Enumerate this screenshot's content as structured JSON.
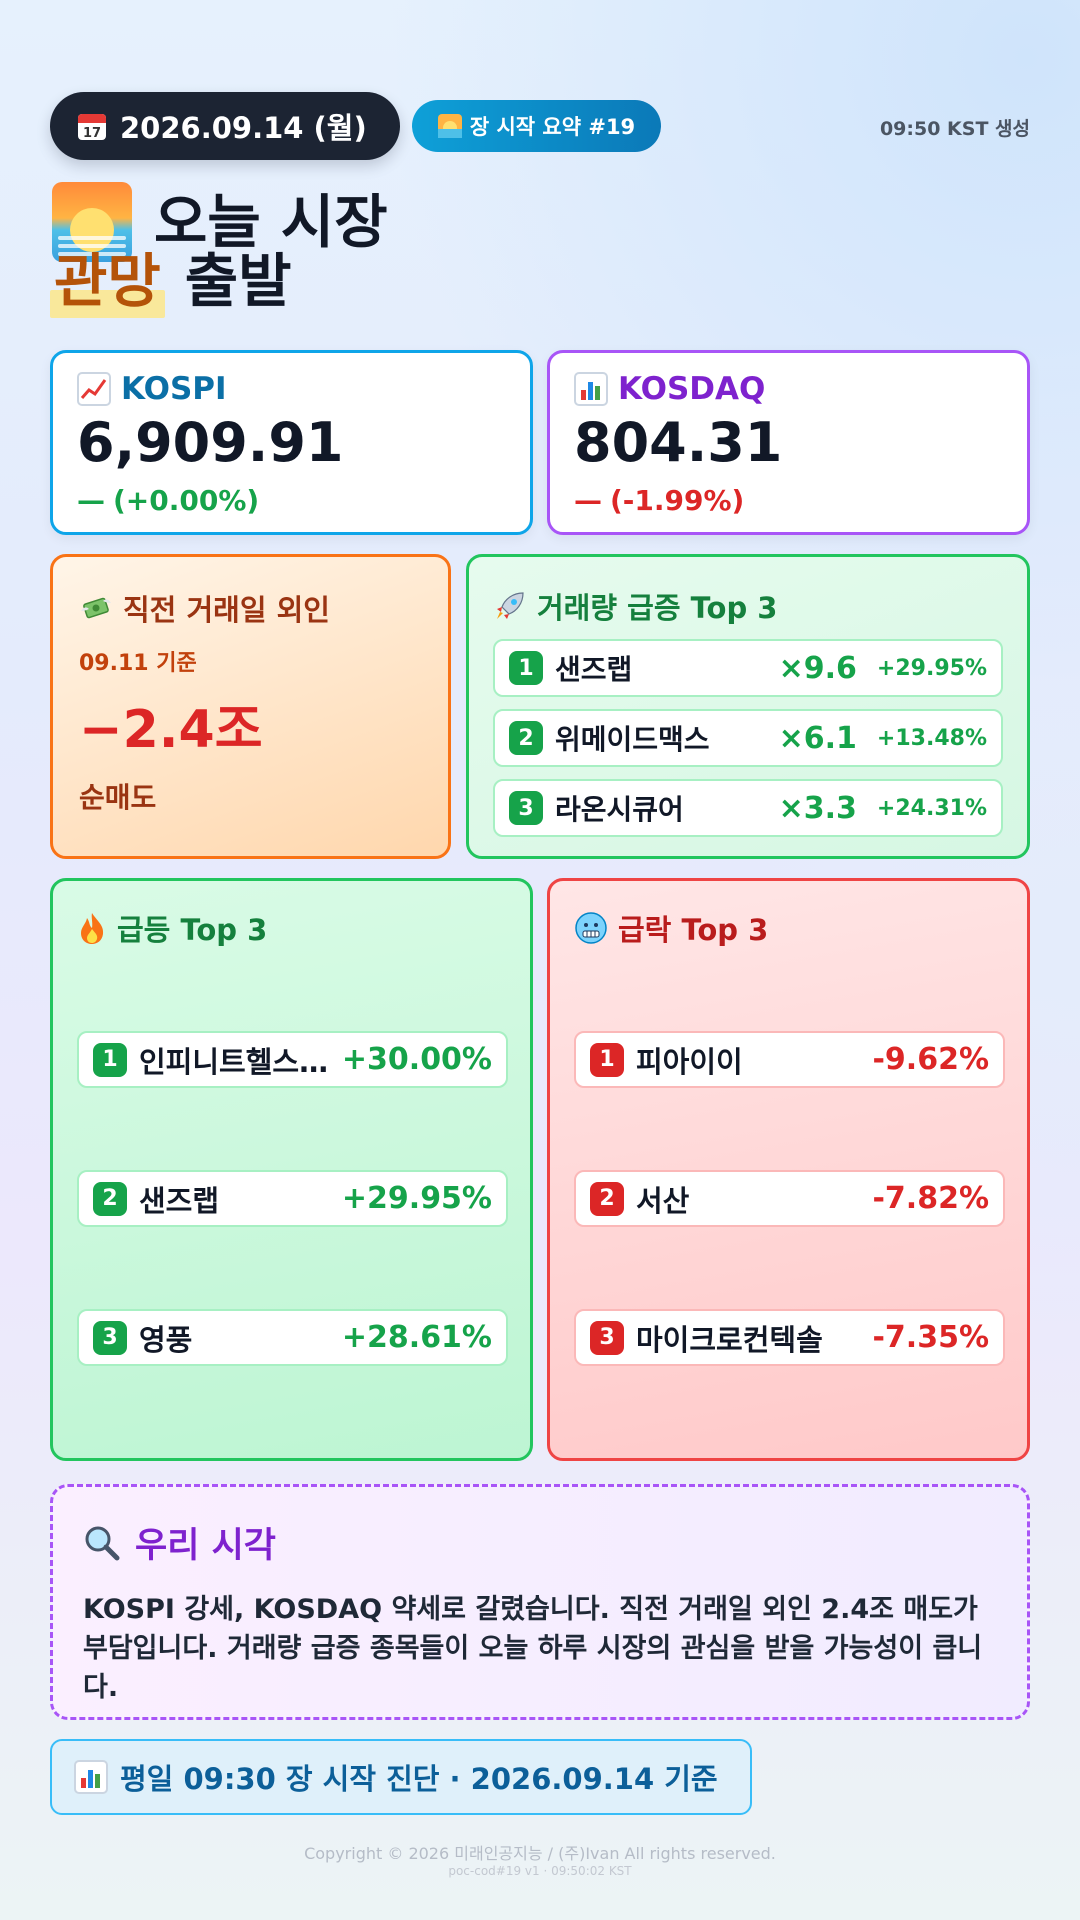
{
  "header": {
    "date": "2026.09.14 (월)",
    "badge": "장 시작 요약 #19",
    "generated": "09:50 KST 생성"
  },
  "title": {
    "line1": "오늘 시장",
    "highlight": "관망",
    "line2": "출발"
  },
  "indices": [
    {
      "name": "KOSPI",
      "value": "6,909.91",
      "dash": "—",
      "change": "(+0.00%)",
      "color": "#0b6fa6",
      "change_color": "#16a34a",
      "border": "#0ea5e9"
    },
    {
      "name": "KOSDAQ",
      "value": "804.31",
      "dash": "—",
      "change": "(-1.99%)",
      "color": "#7e22ce",
      "change_color": "#dc2626",
      "border": "#a855f7"
    }
  ],
  "foreign": {
    "title": "직전 거래일 외인",
    "date_note": "09.11 기준",
    "value": "−2.4조",
    "label": "순매도"
  },
  "volume": {
    "title": "거래량 급증 Top 3",
    "items": [
      {
        "rank": "1",
        "name": "샌즈랩",
        "mult": "×9.6",
        "pct": "+29.95%"
      },
      {
        "rank": "2",
        "name": "위메이드맥스",
        "mult": "×6.1",
        "pct": "+13.48%"
      },
      {
        "rank": "3",
        "name": "라온시큐어",
        "mult": "×3.3",
        "pct": "+24.31%"
      }
    ]
  },
  "gainers": {
    "title": "급등 Top 3",
    "items": [
      {
        "rank": "1",
        "name": "인피니트헬스...",
        "pct": "+30.00%"
      },
      {
        "rank": "2",
        "name": "샌즈랩",
        "pct": "+29.95%"
      },
      {
        "rank": "3",
        "name": "영풍",
        "pct": "+28.61%"
      }
    ]
  },
  "losers": {
    "title": "급락 Top 3",
    "items": [
      {
        "rank": "1",
        "name": "피아이이",
        "pct": "-9.62%"
      },
      {
        "rank": "2",
        "name": "서산",
        "pct": "-7.82%"
      },
      {
        "rank": "3",
        "name": "마이크로컨텍솔",
        "pct": "-7.35%"
      }
    ]
  },
  "view": {
    "title": "우리 시각",
    "body": "KOSPI 강세, KOSDAQ 약세로 갈렸습니다. 직전 거래일 외인 2.4조 매도가 부담입니다. 거래량 급증 종목들이 오늘 하루 시장의 관심을 받을 가능성이 큽니다."
  },
  "footer": {
    "note": "평일 09:30 장 시작 진단 · 2026.09.14 기준",
    "copyright": "Copyright © 2026 미래인공지능 / (주)Ivan All rights reserved.",
    "version": "poc-cod#19 v1 · 09:50:02 KST"
  },
  "icons": {
    "calendar": "calendar-icon",
    "sunrise": "sunrise-icon",
    "kospi": "chart-up-icon",
    "kosdaq": "bar-chart-icon",
    "foreign": "money-wings-icon",
    "volume": "rocket-icon",
    "gainers": "fire-icon",
    "losers": "cold-face-icon",
    "view": "magnifier-icon",
    "footer": "bar-chart-icon"
  }
}
